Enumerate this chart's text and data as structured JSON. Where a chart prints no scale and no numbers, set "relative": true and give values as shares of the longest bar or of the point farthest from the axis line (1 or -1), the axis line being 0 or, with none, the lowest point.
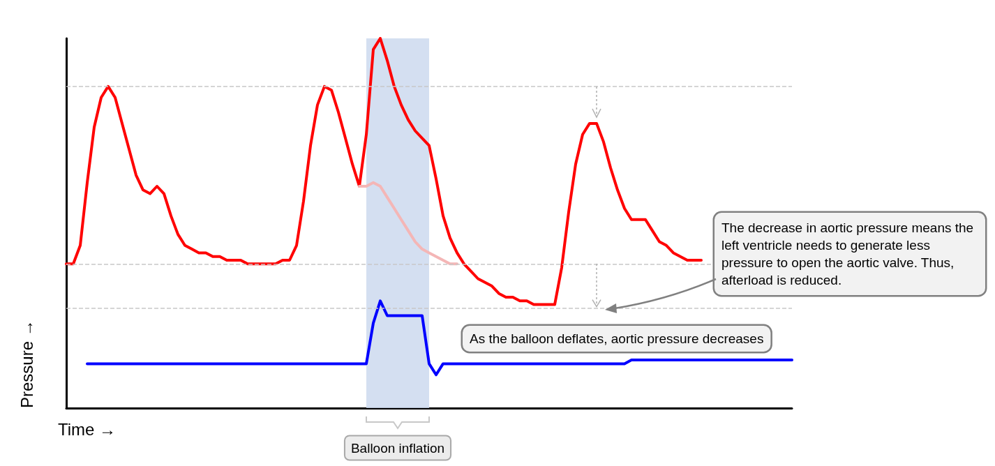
{
  "chart_data": {
    "type": "line",
    "relative": true,
    "xlabel": "Time →",
    "ylabel": "Pressure →",
    "marker": "none",
    "line_style": "solid",
    "categories": [
      null,
      null,
      null,
      null,
      null,
      null,
      null,
      null,
      null,
      null,
      null,
      null,
      null,
      null,
      null,
      null,
      null,
      null,
      null,
      null,
      null,
      null,
      null,
      null,
      null,
      null,
      null,
      null,
      null,
      null,
      null,
      null,
      null,
      null,
      null,
      null,
      null,
      null,
      null,
      null,
      null,
      null,
      null,
      null,
      null,
      null,
      null,
      null,
      null,
      null,
      null,
      null,
      null,
      null,
      null,
      null,
      null,
      null,
      null,
      null,
      null,
      null,
      null,
      null,
      null,
      null,
      null,
      null,
      null,
      null,
      null,
      null,
      null,
      null,
      null,
      null,
      null,
      null,
      null,
      null,
      null,
      null,
      null,
      null,
      null,
      null,
      null,
      null,
      null,
      null,
      null,
      null,
      null,
      null,
      null,
      null,
      null,
      null,
      null,
      null,
      null,
      null,
      null,
      null,
      null
    ],
    "series": [
      {
        "color": "#ff0000",
        "values": [
          0.39,
          0.39,
          0.44,
          0.61,
          0.76,
          0.84,
          0.87,
          0.84,
          0.77,
          0.7,
          0.63,
          0.59,
          0.58,
          0.6,
          0.58,
          0.52,
          0.47,
          0.44,
          0.43,
          0.42,
          0.42,
          0.41,
          0.41,
          0.4,
          0.4,
          0.4,
          0.39,
          0.39,
          0.39,
          0.39,
          0.39,
          0.4,
          0.4,
          0.44,
          0.56,
          0.71,
          0.82,
          0.87,
          0.86,
          0.8,
          0.73,
          0.66,
          0.6,
          0.74,
          0.97,
          1.0,
          0.94,
          0.87,
          0.82,
          0.78,
          0.75,
          0.73,
          0.71,
          0.62,
          0.52,
          0.46,
          0.42,
          0.39,
          0.37,
          0.35,
          0.34,
          0.33,
          0.31,
          0.3,
          0.3,
          0.29,
          0.29,
          0.28,
          0.28,
          0.28,
          0.28,
          0.38,
          0.53,
          0.66,
          0.74,
          0.77,
          0.77,
          0.72,
          0.65,
          0.59,
          0.54,
          0.51,
          0.51,
          0.51,
          0.48,
          0.45,
          0.44,
          0.42,
          0.41,
          0.4,
          0.4,
          0.4,
          null,
          null,
          null,
          null,
          null,
          null,
          null,
          null,
          null,
          null,
          null,
          null,
          null
        ]
      },
      {
        "color": "#f4b6b6",
        "values": [
          null,
          null,
          null,
          null,
          null,
          null,
          null,
          null,
          null,
          null,
          null,
          null,
          null,
          null,
          null,
          null,
          null,
          null,
          null,
          null,
          null,
          null,
          null,
          null,
          null,
          null,
          null,
          null,
          null,
          null,
          null,
          null,
          null,
          null,
          null,
          null,
          null,
          null,
          null,
          null,
          null,
          null,
          0.6,
          0.6,
          0.61,
          0.6,
          0.57,
          0.54,
          0.51,
          0.48,
          0.45,
          0.43,
          0.42,
          0.41,
          0.4,
          0.39,
          0.39,
          null,
          null,
          null,
          null,
          null,
          null,
          null,
          null,
          null,
          null,
          null,
          null,
          null,
          null,
          null,
          null,
          null,
          null,
          null,
          null,
          null,
          null,
          null,
          null,
          null,
          null,
          null,
          null,
          null,
          null,
          null,
          null,
          null,
          null,
          null,
          null,
          null,
          null,
          null,
          null,
          null,
          null,
          null,
          null,
          null,
          null,
          null,
          null
        ]
      },
      {
        "color": "#0000ff",
        "values": [
          null,
          null,
          null,
          0.12,
          0.12,
          0.12,
          0.12,
          0.12,
          0.12,
          0.12,
          0.12,
          0.12,
          0.12,
          0.12,
          0.12,
          0.12,
          0.12,
          0.12,
          0.12,
          0.12,
          0.12,
          0.12,
          0.12,
          0.12,
          0.12,
          0.12,
          0.12,
          0.12,
          0.12,
          0.12,
          0.12,
          0.12,
          0.12,
          0.12,
          0.12,
          0.12,
          0.12,
          0.12,
          0.12,
          0.12,
          0.12,
          0.12,
          0.12,
          0.12,
          0.23,
          0.29,
          0.25,
          0.25,
          0.25,
          0.25,
          0.25,
          0.25,
          0.12,
          0.09,
          0.12,
          0.12,
          0.12,
          0.12,
          0.12,
          0.12,
          0.12,
          0.12,
          0.12,
          0.12,
          0.12,
          0.12,
          0.12,
          0.12,
          0.12,
          0.12,
          0.12,
          0.12,
          0.12,
          0.12,
          0.12,
          0.12,
          0.12,
          0.12,
          0.12,
          0.12,
          0.12,
          0.13,
          0.13,
          0.13,
          0.13,
          0.13,
          0.13,
          0.13,
          0.13,
          0.13,
          0.13,
          0.13,
          0.13,
          0.13,
          0.13,
          0.13,
          0.13,
          0.13,
          0.13,
          0.13,
          0.13,
          0.13,
          0.13,
          0.13,
          0.13
        ]
      }
    ],
    "ref_lines": [
      {
        "axis": "y",
        "value": 0.87,
        "color": "#c8c8c8",
        "line_style": "dashed"
      },
      {
        "axis": "y",
        "value": 0.39,
        "color": "#c8c8c8",
        "line_style": "dashed"
      },
      {
        "axis": "y",
        "value": 0.27,
        "color": "#c8c8c8",
        "line_style": "dashed"
      }
    ],
    "annotations": [
      "As the balloon deflates, aortic pressure decreases",
      "The decrease in aortic pressure means the left ventricle needs to generate less pressure to open the aortic valve. Thus, afterload is reduced.",
      "Balloon inflation"
    ]
  }
}
